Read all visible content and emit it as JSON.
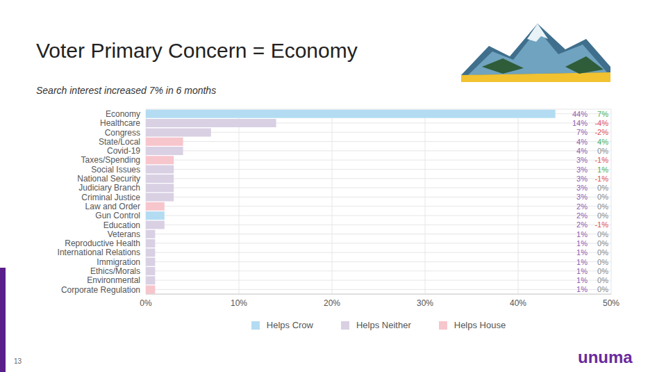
{
  "chart_data": {
    "type": "bar",
    "orientation": "horizontal",
    "title": "Voter Primary Concern = Economy",
    "subtitle": "Search interest increased 7% in 6 months",
    "categories": [
      "Economy",
      "Healthcare",
      "Congress",
      "State/Local",
      "Covid-19",
      "Taxes/Spending",
      "Social Issues",
      "National Security",
      "Judiciary Branch",
      "Criminal Justice",
      "Law and Order",
      "Gun Control",
      "Education",
      "Veterans",
      "Reproductive Health",
      "International Relations",
      "Immigration",
      "Ethics/Morals",
      "Environmental",
      "Corporate Regulation"
    ],
    "values": [
      44,
      14,
      7,
      4,
      4,
      3,
      3,
      3,
      3,
      3,
      2,
      2,
      2,
      1,
      1,
      1,
      1,
      1,
      1,
      1
    ],
    "value_labels": [
      "44%",
      "14%",
      "7%",
      "4%",
      "4%",
      "3%",
      "3%",
      "3%",
      "3%",
      "3%",
      "2%",
      "2%",
      "2%",
      "1%",
      "1%",
      "1%",
      "1%",
      "1%",
      "1%",
      "1%"
    ],
    "changes": [
      7,
      -4,
      -2,
      4,
      0,
      -1,
      1,
      -1,
      0,
      0,
      0,
      0,
      -1,
      0,
      0,
      0,
      0,
      0,
      0,
      0
    ],
    "change_labels": [
      "7%",
      "-4%",
      "-2%",
      "4%",
      "0%",
      "-1%",
      "1%",
      "-1%",
      "0%",
      "0%",
      "0%",
      "0%",
      "-1%",
      "0%",
      "0%",
      "0%",
      "0%",
      "0%",
      "0%",
      "0%"
    ],
    "colors": [
      "#b3dcf2",
      "#d9d0e4",
      "#d9d0e4",
      "#f7c5cc",
      "#d9d0e4",
      "#f7c5cc",
      "#d9d0e4",
      "#d9d0e4",
      "#d9d0e4",
      "#d9d0e4",
      "#f7c5cc",
      "#b3dcf2",
      "#d9d0e4",
      "#d9d0e4",
      "#d9d0e4",
      "#d9d0e4",
      "#d9d0e4",
      "#d9d0e4",
      "#d9d0e4",
      "#f7c5cc"
    ],
    "legend_entries": [
      {
        "name": "Helps Crow",
        "color": "#b3dcf2"
      },
      {
        "name": "Helps Neither",
        "color": "#d9d0e4"
      },
      {
        "name": "Helps House",
        "color": "#f7c5cc"
      }
    ],
    "legend": "bottom",
    "xlim": [
      0,
      50
    ],
    "xticks": [
      {
        "value": 0,
        "label": "0%"
      },
      {
        "value": 10,
        "label": "10%"
      },
      {
        "value": 20,
        "label": "20%"
      },
      {
        "value": 30,
        "label": "30%"
      },
      {
        "value": 40,
        "label": "40%"
      },
      {
        "value": 50,
        "label": "50%"
      }
    ],
    "grid": true,
    "data_labels": true,
    "page_number": "13",
    "logo": "unuma"
  }
}
